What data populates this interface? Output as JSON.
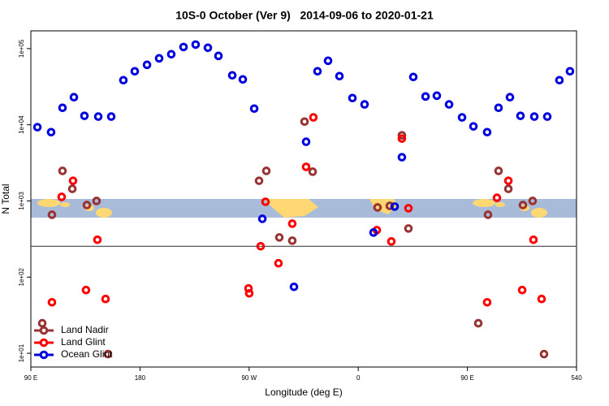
{
  "chart_data": {
    "type": "scatter",
    "title": "10S-0 October (Ver 9)   2014-09-06 to 2020-01-21",
    "xlabel": "Longitude (deg E)",
    "ylabel": "N Total",
    "xlim": [
      90,
      540
    ],
    "ylim": [
      6.6,
      171000
    ],
    "log_y": true,
    "hline": 254,
    "xticks": [
      {
        "value": 90,
        "label": "90 E"
      },
      180,
      {
        "value": 270,
        "label": "90 W"
      },
      {
        "value": 360,
        "label": "0"
      },
      {
        "value": 450,
        "label": "90 E"
      },
      540
    ],
    "yticks": [
      {
        "value": 10,
        "label": "1e+01"
      },
      {
        "value": 100,
        "label": "1e+02"
      },
      {
        "value": 1000,
        "label": "1e+03"
      },
      {
        "value": 10000,
        "label": "1e+04"
      },
      {
        "value": 100000,
        "label": "1e+05"
      }
    ],
    "legend": "bottom-left",
    "series": [
      {
        "name": "Land Nadir",
        "color": "#993333",
        "x": [
          99.4,
          107.4,
          116.1,
          124.2,
          136.2,
          144.2,
          153.6,
          278.2,
          284.2,
          294.9,
          305.6,
          315.7,
          322.4,
          375.9,
          386,
          396,
          401.4,
          459,
          467,
          475.7,
          483.8,
          495.8,
          503.8,
          513.2
        ],
        "values": [
          24.8,
          659,
          2480,
          1440,
          885,
          1000,
          9.75,
          1840,
          2480,
          332,
          301,
          11000,
          2420,
          822,
          862,
          7270,
          435,
          24.8,
          659,
          2480,
          1440,
          885,
          1000,
          9.75
        ]
      },
      {
        "name": "Land Glint",
        "color": "#ff0000",
        "x": [
          107.4,
          115.4,
          124.8,
          135.5,
          144.9,
          151.6,
          269.5,
          270.1,
          279.5,
          283.5,
          294.2,
          305.6,
          317,
          323,
          375.3,
          387.3,
          396,
          401.4,
          466.3,
          474.4,
          483.8,
          495.2,
          504.5,
          511.2
        ],
        "values": [
          46.7,
          1130,
          1840,
          67.6,
          309,
          51.6,
          71,
          61.2,
          254,
          975,
          152,
          503,
          2800,
          12500,
          414,
          294,
          6590,
          802,
          46.7,
          1100,
          1840,
          67.6,
          309,
          51.6
        ]
      },
      {
        "name": "Ocean Glint",
        "color": "#0000dd",
        "x": [
          95.4,
          106.7,
          116.1,
          125.5,
          134.2,
          145.6,
          156.3,
          166.3,
          175.7,
          185.8,
          195.8,
          205.8,
          215.9,
          225.9,
          236,
          244.7,
          256.1,
          264.8,
          274.2,
          280.9,
          307,
          317,
          326.4,
          335.1,
          344.5,
          355.2,
          365.2,
          372.6,
          390,
          396,
          405.4,
          415.5,
          424.8,
          434.9,
          445.6,
          455,
          466.3,
          475.7,
          485.1,
          493.8,
          505.2,
          515.9,
          525.9,
          534.6
        ],
        "values": [
          9300,
          8000,
          16700,
          23000,
          13100,
          12800,
          12800,
          38500,
          50400,
          61200,
          74500,
          84300,
          105000,
          113000,
          102600,
          80200,
          44600,
          39400,
          16300,
          583,
          74.5,
          5980,
          50400,
          69200,
          43500,
          22400,
          18500,
          385,
          843,
          3750,
          42400,
          23500,
          24100,
          18500,
          12500,
          9520,
          8000,
          16700,
          23000,
          13100,
          12800,
          12800,
          38500,
          50400
        ]
      }
    ]
  }
}
